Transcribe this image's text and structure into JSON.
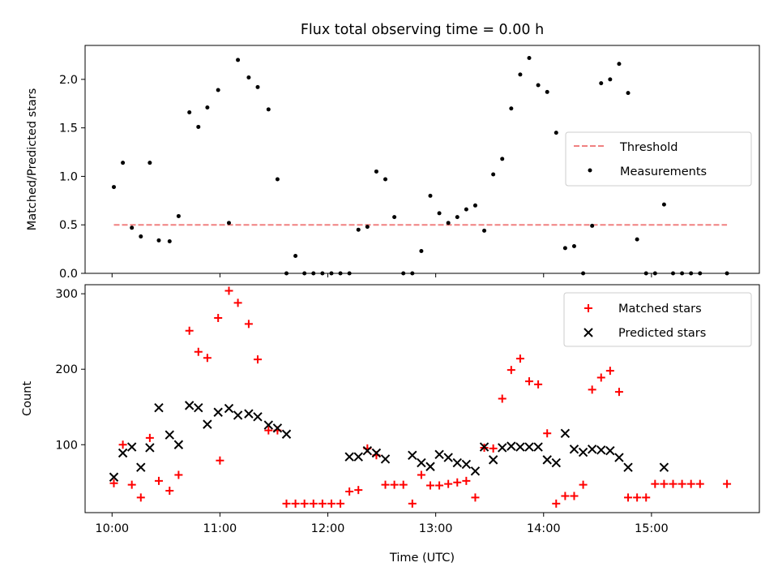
{
  "title": "Flux total observing time = 0.00 h",
  "colors": {
    "threshold": "#f08080",
    "measurement": "#000000",
    "matched": "#ff0000",
    "predicted": "#000000",
    "axes": "#000000",
    "background": "#ffffff"
  },
  "chart_data": [
    {
      "type": "scatter",
      "ylabel": "Matched/Predicted stars",
      "xlabel": "",
      "xlim": [
        "09:45",
        "16:00"
      ],
      "ylim": [
        0,
        2.35
      ],
      "xticks": [
        "10:00",
        "11:00",
        "12:00",
        "13:00",
        "14:00",
        "15:00"
      ],
      "yticks": [
        0.0,
        0.5,
        1.0,
        1.5,
        2.0
      ],
      "ytick_labels": [
        "0.0",
        "0.5",
        "1.0",
        "1.5",
        "2.0"
      ],
      "grid": false,
      "legend": {
        "placement": "center-right",
        "entries": [
          "Threshold",
          "Measurements"
        ]
      },
      "series": [
        {
          "name": "Threshold",
          "style": "dashed-line",
          "x": [
            "10:01",
            "15:42"
          ],
          "y": [
            0.5,
            0.5
          ]
        },
        {
          "name": "Measurements",
          "style": "dot",
          "x": [
            "10:01",
            "10:06",
            "10:11",
            "10:16",
            "10:21",
            "10:26",
            "10:32",
            "10:37",
            "10:43",
            "10:48",
            "10:53",
            "10:59",
            "11:05",
            "11:10",
            "11:16",
            "11:21",
            "11:27",
            "11:32",
            "11:37",
            "11:42",
            "11:47",
            "11:52",
            "11:57",
            "12:02",
            "12:07",
            "12:12",
            "12:17",
            "12:22",
            "12:27",
            "12:32",
            "12:37",
            "12:42",
            "12:47",
            "12:52",
            "12:57",
            "13:02",
            "13:07",
            "13:12",
            "13:17",
            "13:22",
            "13:27",
            "13:32",
            "13:37",
            "13:42",
            "13:47",
            "13:52",
            "13:57",
            "14:02",
            "14:07",
            "14:12",
            "14:17",
            "14:22",
            "14:27",
            "14:32",
            "14:37",
            "14:42",
            "14:47",
            "14:52",
            "14:57",
            "15:02",
            "15:07",
            "15:12",
            "15:17",
            "15:22",
            "15:27",
            "15:42"
          ],
          "y": [
            0.89,
            1.14,
            0.47,
            0.38,
            1.14,
            0.34,
            0.33,
            0.59,
            1.66,
            1.51,
            1.71,
            1.89,
            0.52,
            2.2,
            2.02,
            1.92,
            1.69,
            0.97,
            0.0,
            0.18,
            0.0,
            0.0,
            0.0,
            0.0,
            0.0,
            0.0,
            0.45,
            0.48,
            1.05,
            0.97,
            0.58,
            0.0,
            0.0,
            0.23,
            0.8,
            0.62,
            0.52,
            0.58,
            0.66,
            0.7,
            0.44,
            1.02,
            1.18,
            1.7,
            2.05,
            2.22,
            1.94,
            1.87,
            1.45,
            0.26,
            0.28,
            0.0,
            0.49,
            1.96,
            2.0,
            2.16,
            1.86,
            0.35,
            0.0,
            0.0,
            0.71,
            0.0,
            0.0,
            0.0,
            0.0,
            0.0
          ]
        }
      ]
    },
    {
      "type": "scatter",
      "ylabel": "Count",
      "xlabel": "Time (UTC)",
      "xlim": [
        "09:45",
        "16:00"
      ],
      "ylim": [
        10,
        312
      ],
      "xticks": [
        "10:00",
        "11:00",
        "12:00",
        "13:00",
        "14:00",
        "15:00"
      ],
      "yticks": [
        100,
        200,
        300
      ],
      "ytick_labels": [
        "100",
        "200",
        "300"
      ],
      "grid": false,
      "legend": {
        "placement": "top-right",
        "entries": [
          "Matched stars",
          "Predicted stars"
        ]
      },
      "series": [
        {
          "name": "Matched stars",
          "marker": "plus",
          "x": [
            "10:01",
            "10:06",
            "10:11",
            "10:16",
            "10:21",
            "10:26",
            "10:32",
            "10:37",
            "10:43",
            "10:48",
            "10:53",
            "10:59",
            "11:00",
            "11:05",
            "11:10",
            "11:16",
            "11:21",
            "11:27",
            "11:32",
            "11:37",
            "11:42",
            "11:47",
            "11:52",
            "11:57",
            "12:02",
            "12:07",
            "12:12",
            "12:17",
            "12:22",
            "12:27",
            "12:32",
            "12:37",
            "12:42",
            "12:47",
            "12:52",
            "12:57",
            "13:02",
            "13:07",
            "13:12",
            "13:17",
            "13:22",
            "13:27",
            "13:32",
            "13:37",
            "13:42",
            "13:47",
            "13:52",
            "13:57",
            "14:02",
            "14:07",
            "14:12",
            "14:17",
            "14:22",
            "14:27",
            "14:32",
            "14:37",
            "14:42",
            "14:47",
            "14:52",
            "14:57",
            "15:02",
            "15:07",
            "15:12",
            "15:17",
            "15:22",
            "15:27",
            "15:42"
          ],
          "y": [
            49,
            100,
            47,
            30,
            109,
            52,
            39,
            60,
            251,
            223,
            215,
            268,
            79,
            304,
            288,
            260,
            213,
            119,
            119,
            22,
            22,
            22,
            22,
            22,
            22,
            22,
            38,
            40,
            95,
            86,
            47,
            47,
            47,
            22,
            60,
            46,
            46,
            48,
            50,
            52,
            30,
            96,
            95,
            161,
            199,
            214,
            184,
            180,
            115,
            22,
            32,
            32,
            47,
            173,
            189,
            198,
            170,
            30,
            30,
            30,
            48,
            48,
            48,
            48,
            48,
            48,
            48
          ],
          "_note_order": "x and y aligned by index"
        },
        {
          "name": "Predicted stars",
          "marker": "x",
          "x": [
            "10:01",
            "10:06",
            "10:11",
            "10:16",
            "10:21",
            "10:26",
            "10:32",
            "10:37",
            "10:43",
            "10:48",
            "10:53",
            "10:59",
            "11:05",
            "11:10",
            "11:16",
            "11:21",
            "11:27",
            "11:32",
            "11:37",
            "12:12",
            "12:17",
            "12:22",
            "12:27",
            "12:32",
            "12:47",
            "12:52",
            "12:57",
            "13:02",
            "13:07",
            "13:12",
            "13:17",
            "13:22",
            "13:27",
            "13:32",
            "13:37",
            "13:42",
            "13:47",
            "13:52",
            "13:57",
            "14:02",
            "14:07",
            "14:12",
            "14:17",
            "14:22",
            "14:27",
            "14:32",
            "14:37",
            "14:42",
            "14:47",
            "15:07"
          ],
          "y": [
            57,
            89,
            97,
            70,
            96,
            149,
            113,
            100,
            152,
            149,
            127,
            143,
            148,
            139,
            141,
            137,
            126,
            122,
            114,
            84,
            84,
            92,
            89,
            81,
            86,
            76,
            71,
            87,
            83,
            76,
            74,
            65,
            97,
            80,
            96,
            98,
            97,
            97,
            97,
            80,
            76,
            115,
            94,
            90,
            94,
            93,
            92,
            83,
            70,
            70
          ]
        }
      ]
    }
  ]
}
